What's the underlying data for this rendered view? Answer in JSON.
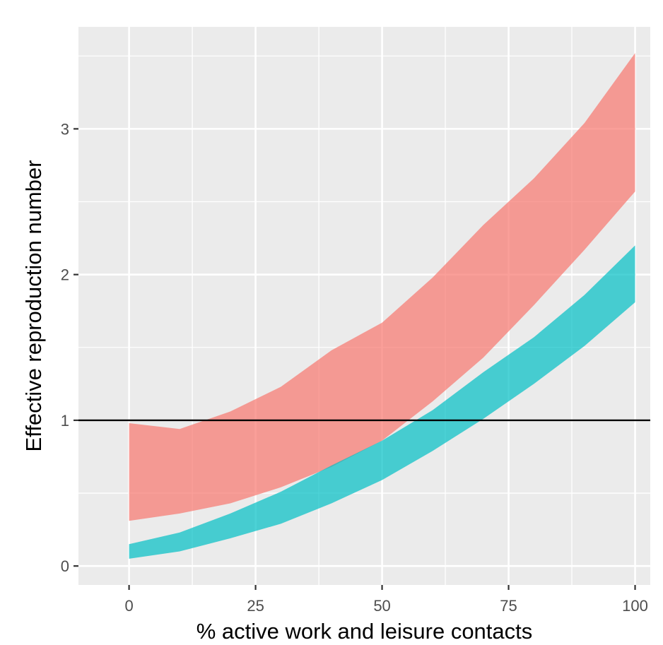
{
  "chart_data": {
    "type": "area",
    "xlabel": "% active work and leisure contacts",
    "ylabel": "Effective reproduction number",
    "xlim": [
      -10,
      103
    ],
    "ylim": [
      -0.13,
      3.7
    ],
    "x_ticks": [
      0,
      25,
      50,
      75,
      100
    ],
    "x_tick_labels": [
      "0",
      "25",
      "50",
      "75",
      "100"
    ],
    "y_ticks": [
      0,
      1,
      2,
      3
    ],
    "y_tick_labels": [
      "0",
      "1",
      "2",
      "3"
    ],
    "grid": true,
    "legend": "none",
    "reference_line": {
      "y": 1,
      "color": "#000000"
    },
    "x": [
      0,
      10,
      20,
      30,
      40,
      50,
      60,
      70,
      80,
      90,
      100
    ],
    "series": [
      {
        "color": "#F8766D",
        "lower": [
          0.31,
          0.36,
          0.43,
          0.54,
          0.68,
          0.86,
          1.13,
          1.43,
          1.79,
          2.17,
          2.57
        ],
        "upper": [
          0.98,
          0.94,
          1.06,
          1.23,
          1.48,
          1.67,
          1.98,
          2.34,
          2.66,
          3.04,
          3.52
        ]
      },
      {
        "color": "#00BFC4",
        "lower": [
          0.05,
          0.1,
          0.19,
          0.29,
          0.43,
          0.59,
          0.79,
          1.01,
          1.25,
          1.51,
          1.81
        ],
        "upper": [
          0.15,
          0.23,
          0.36,
          0.51,
          0.69,
          0.86,
          1.07,
          1.33,
          1.57,
          1.86,
          2.2
        ]
      }
    ]
  }
}
